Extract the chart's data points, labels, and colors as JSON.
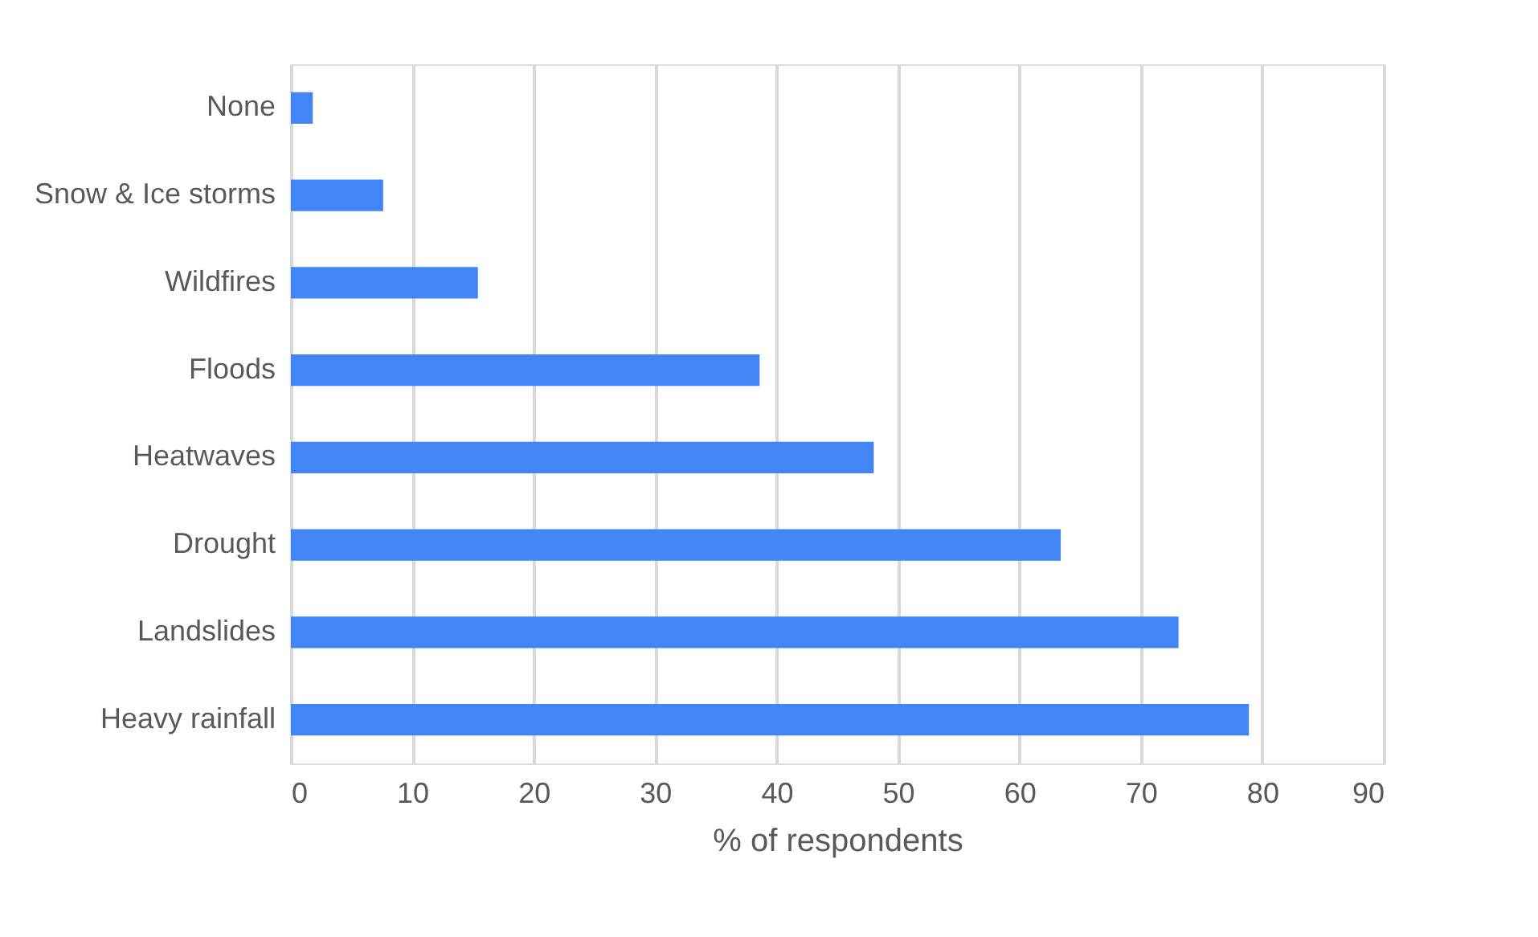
{
  "chart_data": {
    "type": "bar",
    "orientation": "horizontal",
    "xlabel": "% of respondents",
    "categories": [
      "None",
      "Snow & Ice storms",
      "Wildfires",
      "Floods",
      "Heatwaves",
      "Drought",
      "Landslides",
      "Heavy rainfall"
    ],
    "values": [
      1.8,
      7.6,
      15.4,
      38.6,
      48.0,
      63.4,
      73.1,
      78.9
    ],
    "color": "#4285f4",
    "xlim": [
      0,
      90
    ],
    "xticks": [
      0,
      10,
      20,
      30,
      40,
      50,
      60,
      70,
      80,
      90
    ],
    "grid": "x"
  }
}
